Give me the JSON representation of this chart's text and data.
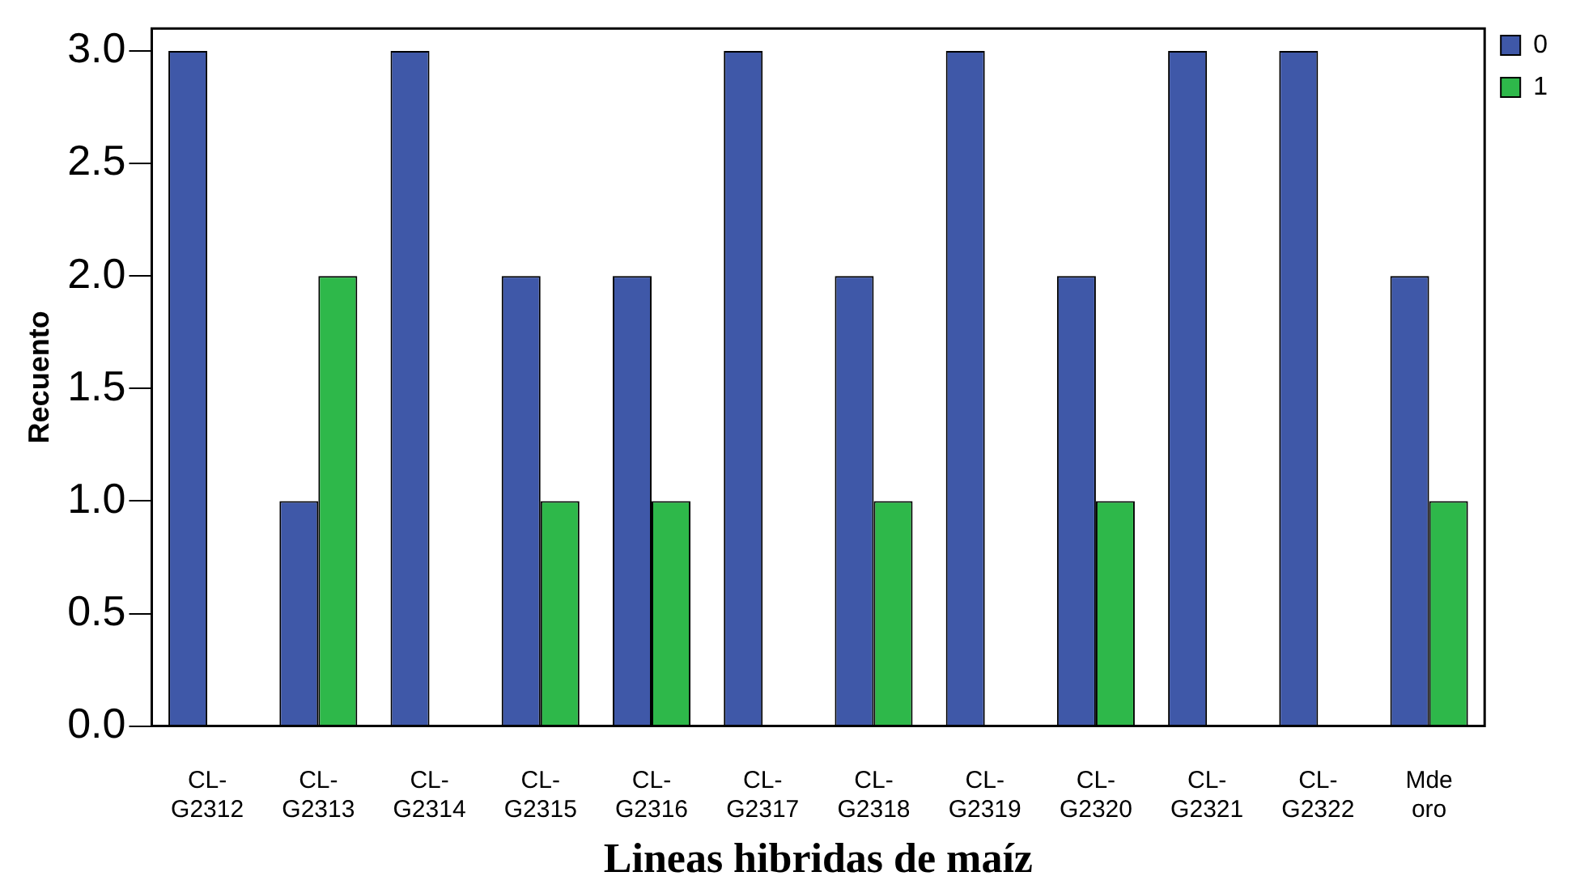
{
  "chart_data": {
    "type": "bar",
    "xlabel": "Lineas hibridas de maíz",
    "ylabel": "Recuento",
    "categories": [
      "CL-G2312",
      "CL-G2313",
      "CL-G2314",
      "CL-G2315",
      "CL-G2316",
      "CL-G2317",
      "CL-G2318",
      "CL-G2319",
      "CL-G2320",
      "CL-G2321",
      "CL-G2322",
      "Mde oro"
    ],
    "series": [
      {
        "name": "0",
        "color": "#3f58a8",
        "values": [
          3,
          1,
          3,
          2,
          2,
          3,
          2,
          3,
          2,
          3,
          3,
          2
        ]
      },
      {
        "name": "1",
        "color": "#2eb84a",
        "values": [
          0,
          2,
          0,
          1,
          1,
          0,
          1,
          0,
          1,
          0,
          0,
          1
        ]
      }
    ],
    "ylim": [
      0,
      3.1
    ],
    "yticks": [
      {
        "value": 0,
        "label": "0.0"
      },
      {
        "value": 0.5,
        "label": "0.5"
      },
      {
        "value": 1,
        "label": "1.0"
      },
      {
        "value": 1.5,
        "label": "1.5"
      },
      {
        "value": 2,
        "label": "2.0"
      },
      {
        "value": 2.5,
        "label": "2.5"
      },
      {
        "value": 3,
        "label": "3.0"
      }
    ],
    "grid": false,
    "legend": "top right"
  }
}
